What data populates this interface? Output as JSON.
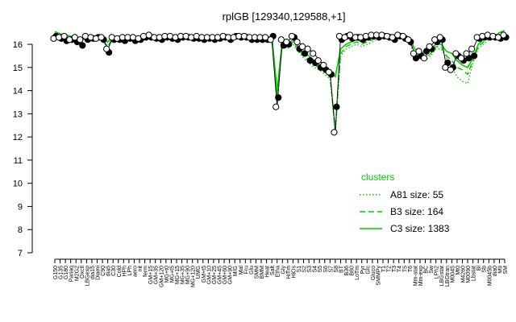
{
  "chart_data": {
    "type": "line",
    "title": "rplGB [129340,129588,+1]",
    "xlabel": "",
    "ylabel": "",
    "ylim": [
      7,
      16.8
    ],
    "yticks": [
      7,
      8,
      9,
      10,
      11,
      12,
      13,
      14,
      15,
      16
    ],
    "grid": false,
    "legend": {
      "title": "clusters",
      "placement": "right",
      "entries": [
        {
          "label": "A81 size: 55",
          "style": "dotted"
        },
        {
          "label": "B3 size: 164",
          "style": "dashed"
        },
        {
          "label": "C3 size: 1383",
          "style": "solid"
        }
      ]
    },
    "color": "#00cc00",
    "x_tick_labels": [
      "G150",
      "G135",
      "G180",
      "Pariaq",
      "M2G2",
      "Oxctl",
      "LBGexp",
      "dia15",
      "Diami",
      "C90",
      "dia5",
      "C30",
      "Cold",
      "HPh",
      "LPh",
      "aero",
      "nit",
      "ferm",
      "GM+15",
      "GM+35",
      "GM+120",
      "MG+t0",
      "MG+t5",
      "MG+15",
      "MG+35",
      "MG+90",
      "MG+120",
      "UMG",
      "GM+t5",
      "GM+10",
      "GM+25",
      "GM+45",
      "GM+60",
      "GM+90",
      "M/G",
      "Mal",
      "Fru",
      "Glu",
      "SMM",
      "BMM",
      "Heat",
      "Salt",
      "Etha",
      "Gly",
      "HiTm",
      "HiOs",
      "S1",
      "S2",
      "S3",
      "S4",
      "S5",
      "S6",
      "S7",
      "S8",
      "BT",
      "B36",
      "B60",
      "LoTm",
      "Pyr",
      "Glc",
      "Gluco",
      "SMMPy",
      "T1",
      "T2",
      "T3",
      "T4",
      "T5",
      "T6",
      "Mm-stat",
      "Mm-exp",
      "BC",
      "Sw",
      "LPh2",
      "LBGstat",
      "LBGtran",
      "M0045",
      "Mt0",
      "M4260",
      "M0090",
      "Lbstat",
      "Bl",
      "Sb",
      "M0045b",
      "dia0",
      "M9",
      "SM"
    ],
    "series": [
      {
        "name": "C3 size: 1383",
        "style": "solid",
        "values": [
          16.55,
          16.45,
          16.4,
          16.35,
          16.3,
          16.25,
          16.3,
          16.3,
          16.4,
          16.3,
          16.1,
          16.3,
          16.3,
          16.25,
          16.3,
          16.25,
          16.25,
          16.3,
          16.3,
          16.35,
          16.3,
          16.3,
          16.3,
          16.3,
          16.35,
          16.35,
          16.3,
          16.3,
          16.3,
          16.3,
          16.25,
          16.3,
          16.3,
          16.25,
          16.3,
          16.35,
          16.3,
          16.3,
          16.25,
          16.3,
          16.25,
          16.35,
          14.0,
          16.2,
          16.0,
          16.2,
          15.9,
          15.6,
          15.5,
          15.3,
          15.1,
          15.0,
          14.8,
          14.6,
          15.8,
          16.0,
          16.1,
          16.2,
          16.1,
          16.2,
          16.3,
          16.3,
          16.35,
          16.3,
          16.3,
          16.4,
          16.3,
          16.3,
          15.8,
          15.7,
          15.6,
          15.8,
          16.0,
          16.0,
          15.7,
          15.6,
          15.3,
          15.1,
          15.0,
          15.4,
          16.0,
          16.2,
          16.3,
          16.3,
          16.5,
          16.6
        ]
      },
      {
        "name": "B3 size: 164",
        "style": "dashed",
        "values": [
          16.5,
          16.4,
          16.3,
          16.3,
          16.2,
          16.2,
          16.25,
          16.3,
          16.4,
          16.2,
          15.9,
          16.3,
          16.2,
          16.2,
          16.25,
          16.2,
          16.2,
          16.25,
          16.3,
          16.3,
          16.3,
          16.25,
          16.3,
          16.3,
          16.3,
          16.3,
          16.25,
          16.25,
          16.25,
          16.3,
          16.2,
          16.25,
          16.3,
          16.2,
          16.25,
          16.3,
          16.25,
          16.25,
          16.2,
          16.25,
          16.2,
          16.3,
          13.8,
          16.1,
          15.9,
          16.1,
          15.8,
          15.5,
          15.3,
          15.1,
          15.0,
          14.8,
          14.6,
          12.3,
          15.6,
          15.9,
          16.0,
          16.1,
          16.0,
          16.1,
          16.2,
          16.3,
          16.3,
          16.3,
          16.25,
          16.3,
          16.25,
          16.2,
          15.6,
          15.5,
          15.4,
          15.6,
          15.9,
          15.9,
          15.5,
          15.3,
          15.0,
          14.9,
          14.7,
          15.3,
          15.9,
          16.1,
          16.25,
          16.3,
          16.4,
          16.5
        ]
      },
      {
        "name": "A81 size: 55",
        "style": "dotted",
        "values": [
          16.45,
          16.35,
          16.3,
          16.25,
          16.2,
          16.2,
          16.2,
          16.25,
          16.35,
          16.2,
          15.8,
          16.25,
          16.2,
          16.2,
          16.2,
          16.2,
          16.2,
          16.2,
          16.25,
          16.25,
          16.25,
          16.2,
          16.25,
          16.25,
          16.25,
          16.25,
          16.2,
          16.2,
          16.2,
          16.25,
          16.2,
          16.2,
          16.25,
          16.2,
          16.2,
          16.25,
          16.2,
          16.2,
          16.2,
          16.2,
          16.15,
          16.25,
          13.5,
          16.1,
          15.8,
          16.0,
          15.7,
          15.4,
          15.2,
          15.0,
          14.9,
          14.7,
          14.5,
          12.2,
          15.5,
          15.8,
          15.9,
          16.0,
          15.9,
          16.0,
          16.1,
          16.25,
          16.25,
          16.25,
          16.2,
          16.25,
          16.2,
          16.1,
          15.5,
          15.4,
          15.3,
          15.5,
          15.8,
          15.8,
          15.4,
          15.0,
          14.6,
          14.4,
          14.3,
          15.2,
          15.8,
          16.0,
          16.2,
          16.25,
          16.35,
          16.45
        ]
      }
    ],
    "points_black": [
      16.35,
      16.25,
      16.15,
      16.2,
      16.1,
      15.95,
      16.2,
      16.25,
      16.3,
      16.2,
      15.65,
      16.2,
      16.2,
      16.15,
      16.25,
      16.15,
      16.2,
      16.3,
      16.3,
      16.25,
      16.2,
      16.3,
      16.25,
      16.2,
      16.3,
      16.3,
      16.25,
      16.25,
      16.2,
      16.25,
      16.2,
      16.25,
      16.3,
      16.2,
      16.35,
      16.3,
      16.3,
      16.2,
      16.2,
      16.2,
      16.2,
      16.35,
      13.7,
      15.95,
      16.0,
      16.3,
      15.8,
      15.6,
      15.3,
      15.2,
      15.0,
      14.9,
      14.7,
      13.3,
      16.2,
      16.35,
      16.25,
      16.3,
      16.2,
      16.3,
      16.35,
      16.3,
      16.35,
      16.3,
      16.2,
      16.35,
      16.25,
      16.1,
      15.4,
      15.5,
      15.7,
      15.8,
      16.1,
      16.2,
      15.2,
      15.0,
      15.5,
      15.3,
      15.4,
      15.5,
      16.25,
      16.3,
      16.3,
      16.3,
      16.25,
      16.3
    ],
    "points_white": [
      16.25,
      16.3,
      16.35,
      16.2,
      16.3,
      16.2,
      16.35,
      16.3,
      16.25,
      16.3,
      15.8,
      16.3,
      16.25,
      16.3,
      16.3,
      16.3,
      16.25,
      16.35,
      16.4,
      16.3,
      16.3,
      16.35,
      16.35,
      16.3,
      16.35,
      16.35,
      16.3,
      16.35,
      16.3,
      16.3,
      16.3,
      16.3,
      16.35,
      16.3,
      16.3,
      16.35,
      16.35,
      16.3,
      16.3,
      16.3,
      16.3,
      16.2,
      13.3,
      16.2,
      16.1,
      16.35,
      16.1,
      15.9,
      15.8,
      15.6,
      15.3,
      15.1,
      14.8,
      12.2,
      16.35,
      16.3,
      16.4,
      16.3,
      16.3,
      16.35,
      16.4,
      16.4,
      16.4,
      16.35,
      16.3,
      16.4,
      16.35,
      16.2,
      15.6,
      15.7,
      15.4,
      15.9,
      16.2,
      16.3,
      15.0,
      14.9,
      15.6,
      15.4,
      15.6,
      15.8,
      16.3,
      16.35,
      16.4,
      16.35,
      16.3,
      16.4
    ]
  }
}
